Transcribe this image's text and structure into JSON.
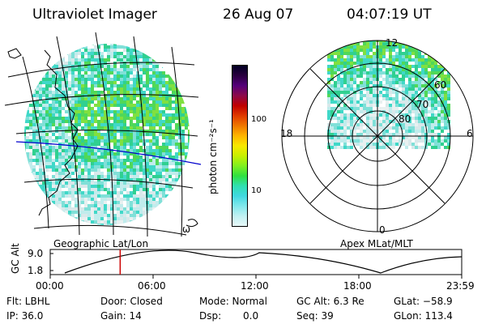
{
  "header": {
    "title": "Ultraviolet Imager",
    "date": "26 Aug 07",
    "time": "04:07:19 UT"
  },
  "geo_panel": {
    "label": "Geographic Lat/Lon",
    "corner_mark": "ω"
  },
  "polar_panel": {
    "label": "Apex MLat/MLT",
    "mlt_labels": {
      "top": "12",
      "left": "18",
      "right": "6",
      "bottom": "0"
    },
    "lat_labels": [
      "60",
      "70",
      "80"
    ]
  },
  "colorbar": {
    "unit_label": "photon cm⁻²s⁻¹",
    "ticks": [
      "100",
      "10"
    ],
    "colors": [
      "#000022",
      "#2a0040",
      "#55007a",
      "#8c0a4a",
      "#c00000",
      "#e03a00",
      "#f07800",
      "#ffb400",
      "#f8e800",
      "#c8f000",
      "#80f020",
      "#30e040",
      "#30e0b0",
      "#40d8e0",
      "#80e8ec",
      "#c0f0f2",
      "#e8f8f8"
    ]
  },
  "timeline": {
    "axis_label": "GC Alt",
    "y_ticks": [
      "9.0",
      "1.8"
    ],
    "x_ticks": [
      "00:00",
      "06:00",
      "12:00",
      "18:00",
      "23:59"
    ],
    "current_time_fraction": 0.17,
    "marker_color": "#cc0000"
  },
  "status": {
    "flt": "Flt: LBHL",
    "ip": "IP: 36.0",
    "door": "Door: Closed",
    "gain": "Gain: 14",
    "mode": "Mode: Normal",
    "dsp_label": "Dsp:",
    "dsp_value": "0.0",
    "gc_alt": "GC Alt: 6.3 Re",
    "seq": "Seq: 39",
    "glat": "GLat: −58.9",
    "glon": "GLon: 113.4"
  }
}
